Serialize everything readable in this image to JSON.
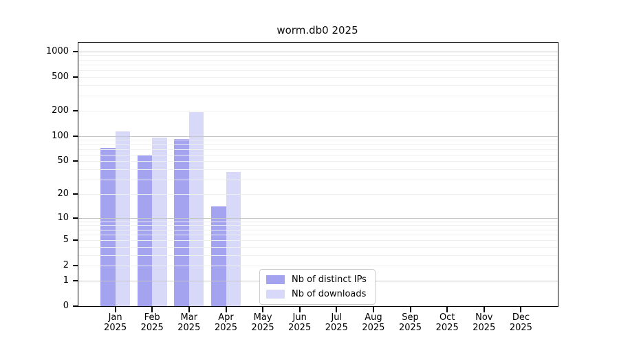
{
  "chart_data": {
    "type": "bar",
    "title": "worm.db0 2025",
    "x_year": "2025",
    "categories": [
      "Jan",
      "Feb",
      "Mar",
      "Apr",
      "May",
      "Jun",
      "Jul",
      "Aug",
      "Sep",
      "Oct",
      "Nov",
      "Dec"
    ],
    "series": [
      {
        "name": "Nb of distinct IPs",
        "color": "#a3a3f0",
        "values": [
          72,
          60,
          93,
          14,
          null,
          null,
          null,
          null,
          null,
          null,
          null,
          null
        ]
      },
      {
        "name": "Nb of downloads",
        "color": "#d8d8f8",
        "values": [
          114,
          95,
          194,
          37,
          null,
          null,
          null,
          null,
          null,
          null,
          null,
          null
        ]
      }
    ],
    "y_ticks": [
      0,
      1,
      2,
      5,
      10,
      20,
      50,
      100,
      200,
      500,
      1000
    ],
    "y_scale": "log1p",
    "ylim": [
      0,
      1270
    ],
    "grid": "both",
    "legend_position": "lower center"
  }
}
